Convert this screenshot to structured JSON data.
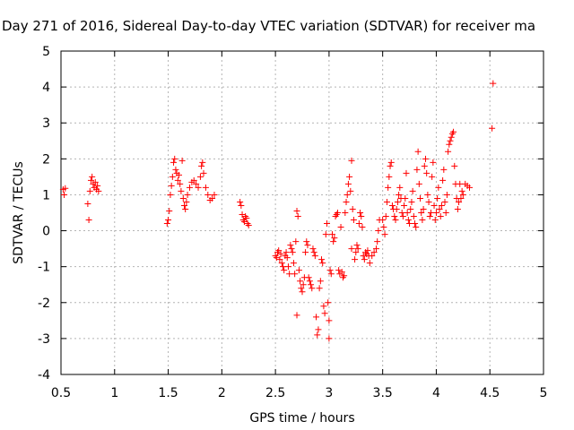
{
  "chart_data": {
    "type": "scatter",
    "title": "Day 271 of 2016, Sidereal Day-to-day VTEC variation (SDTVAR) for receiver ma",
    "xlabel": "GPS time / hours",
    "ylabel": "SDTVAR / TECUs",
    "xlim": [
      0.5,
      5
    ],
    "ylim": [
      -4,
      5
    ],
    "x_ticks": [
      0.5,
      1,
      1.5,
      2,
      2.5,
      3,
      3.5,
      4,
      4.5,
      5
    ],
    "x_tick_labels": [
      "0.5",
      "1",
      "1.5",
      "2",
      "2.5",
      "3",
      "3.5",
      "4",
      "4.5",
      "5"
    ],
    "y_ticks": [
      -4,
      -3,
      -2,
      -1,
      0,
      1,
      2,
      3,
      4,
      5
    ],
    "y_tick_labels": [
      "-4",
      "-3",
      "-2",
      "-1",
      "0",
      "1",
      "2",
      "3",
      "4",
      "5"
    ],
    "grid": true,
    "marker": "+",
    "series": [
      {
        "name": "SDTVAR",
        "color": "#ff0000",
        "points": [
          [
            0.52,
            1.15
          ],
          [
            0.53,
            1.0
          ],
          [
            0.54,
            1.18
          ],
          [
            0.75,
            0.75
          ],
          [
            0.76,
            0.3
          ],
          [
            0.77,
            1.1
          ],
          [
            0.78,
            1.4
          ],
          [
            0.79,
            1.5
          ],
          [
            0.8,
            1.3
          ],
          [
            0.81,
            1.2
          ],
          [
            0.82,
            1.35
          ],
          [
            0.83,
            1.15
          ],
          [
            0.84,
            1.25
          ],
          [
            0.85,
            1.1
          ],
          [
            1.49,
            0.2
          ],
          [
            1.5,
            0.3
          ],
          [
            1.51,
            0.55
          ],
          [
            1.52,
            1.0
          ],
          [
            1.53,
            1.25
          ],
          [
            1.54,
            1.5
          ],
          [
            1.55,
            1.9
          ],
          [
            1.56,
            2.0
          ],
          [
            1.57,
            1.7
          ],
          [
            1.58,
            1.6
          ],
          [
            1.59,
            1.4
          ],
          [
            1.6,
            1.55
          ],
          [
            1.61,
            1.3
          ],
          [
            1.62,
            1.1
          ],
          [
            1.63,
            1.95
          ],
          [
            1.64,
            0.9
          ],
          [
            1.65,
            0.7
          ],
          [
            1.66,
            0.6
          ],
          [
            1.67,
            0.8
          ],
          [
            1.68,
            1.0
          ],
          [
            1.7,
            1.2
          ],
          [
            1.72,
            1.35
          ],
          [
            1.74,
            1.4
          ],
          [
            1.76,
            1.3
          ],
          [
            1.78,
            1.2
          ],
          [
            1.8,
            1.5
          ],
          [
            1.81,
            1.8
          ],
          [
            1.82,
            1.9
          ],
          [
            1.83,
            1.6
          ],
          [
            1.85,
            1.2
          ],
          [
            1.87,
            1.0
          ],
          [
            1.89,
            0.85
          ],
          [
            1.91,
            0.9
          ],
          [
            1.93,
            1.0
          ],
          [
            2.17,
            0.8
          ],
          [
            2.18,
            0.7
          ],
          [
            2.19,
            0.45
          ],
          [
            2.2,
            0.3
          ],
          [
            2.21,
            0.25
          ],
          [
            2.22,
            0.4
          ],
          [
            2.23,
            0.35
          ],
          [
            2.24,
            0.2
          ],
          [
            2.25,
            0.15
          ],
          [
            2.5,
            -0.7
          ],
          [
            2.51,
            -0.75
          ],
          [
            2.52,
            -0.6
          ],
          [
            2.53,
            -0.55
          ],
          [
            2.54,
            -0.8
          ],
          [
            2.55,
            -0.65
          ],
          [
            2.56,
            -0.9
          ],
          [
            2.57,
            -1.0
          ],
          [
            2.58,
            -1.1
          ],
          [
            2.59,
            -0.7
          ],
          [
            2.6,
            -0.6
          ],
          [
            2.61,
            -0.75
          ],
          [
            2.62,
            -1.0
          ],
          [
            2.63,
            -1.2
          ],
          [
            2.64,
            -0.4
          ],
          [
            2.65,
            -0.5
          ],
          [
            2.66,
            -0.6
          ],
          [
            2.67,
            -0.9
          ],
          [
            2.68,
            -1.2
          ],
          [
            2.69,
            -0.3
          ],
          [
            2.7,
            0.55
          ],
          [
            2.7,
            -2.35
          ],
          [
            2.71,
            0.4
          ],
          [
            2.72,
            -1.1
          ],
          [
            2.73,
            -1.4
          ],
          [
            2.74,
            -1.6
          ],
          [
            2.75,
            -1.7
          ],
          [
            2.76,
            -1.5
          ],
          [
            2.77,
            -1.3
          ],
          [
            2.78,
            -0.6
          ],
          [
            2.79,
            -0.3
          ],
          [
            2.8,
            -0.4
          ],
          [
            2.81,
            -1.3
          ],
          [
            2.82,
            -1.4
          ],
          [
            2.83,
            -1.5
          ],
          [
            2.84,
            -1.6
          ],
          [
            2.85,
            -0.5
          ],
          [
            2.86,
            -0.6
          ],
          [
            2.87,
            -0.7
          ],
          [
            2.88,
            -2.4
          ],
          [
            2.89,
            -2.9
          ],
          [
            2.9,
            -2.75
          ],
          [
            2.91,
            -1.6
          ],
          [
            2.92,
            -1.4
          ],
          [
            2.93,
            -0.8
          ],
          [
            2.94,
            -0.9
          ],
          [
            2.95,
            -2.1
          ],
          [
            2.96,
            -2.3
          ],
          [
            2.97,
            -0.1
          ],
          [
            2.98,
            0.2
          ],
          [
            2.99,
            -2.0
          ],
          [
            3.0,
            -2.5
          ],
          [
            3.0,
            -3.0
          ],
          [
            3.01,
            -1.1
          ],
          [
            3.02,
            -1.2
          ],
          [
            3.03,
            -0.1
          ],
          [
            3.04,
            -0.3
          ],
          [
            3.05,
            -0.2
          ],
          [
            3.06,
            0.4
          ],
          [
            3.07,
            0.45
          ],
          [
            3.08,
            0.5
          ],
          [
            3.09,
            -1.1
          ],
          [
            3.1,
            -1.2
          ],
          [
            3.11,
            0.1
          ],
          [
            3.12,
            -1.15
          ],
          [
            3.13,
            -1.3
          ],
          [
            3.14,
            -1.25
          ],
          [
            3.15,
            0.5
          ],
          [
            3.16,
            0.8
          ],
          [
            3.17,
            1.0
          ],
          [
            3.18,
            1.3
          ],
          [
            3.19,
            1.5
          ],
          [
            3.2,
            1.1
          ],
          [
            3.21,
            -0.5
          ],
          [
            3.21,
            1.95
          ],
          [
            3.22,
            0.6
          ],
          [
            3.23,
            0.3
          ],
          [
            3.24,
            -0.8
          ],
          [
            3.25,
            -0.6
          ],
          [
            3.26,
            -0.4
          ],
          [
            3.27,
            -0.5
          ],
          [
            3.28,
            0.2
          ],
          [
            3.29,
            0.5
          ],
          [
            3.3,
            0.4
          ],
          [
            3.31,
            0.1
          ],
          [
            3.32,
            -0.7
          ],
          [
            3.33,
            -0.8
          ],
          [
            3.34,
            -0.6
          ],
          [
            3.35,
            -0.65
          ],
          [
            3.36,
            -0.55
          ],
          [
            3.37,
            -0.7
          ],
          [
            3.38,
            -0.9
          ],
          [
            3.4,
            -0.7
          ],
          [
            3.42,
            -0.6
          ],
          [
            3.44,
            -0.5
          ],
          [
            3.45,
            -0.3
          ],
          [
            3.46,
            0.0
          ],
          [
            3.47,
            0.3
          ],
          [
            3.5,
            0.3
          ],
          [
            3.51,
            0.1
          ],
          [
            3.52,
            -0.1
          ],
          [
            3.53,
            0.4
          ],
          [
            3.54,
            0.8
          ],
          [
            3.55,
            1.2
          ],
          [
            3.56,
            1.5
          ],
          [
            3.57,
            1.8
          ],
          [
            3.58,
            1.9
          ],
          [
            3.59,
            0.7
          ],
          [
            3.6,
            0.6
          ],
          [
            3.61,
            0.4
          ],
          [
            3.62,
            0.3
          ],
          [
            3.63,
            0.6
          ],
          [
            3.64,
            0.8
          ],
          [
            3.65,
            1.0
          ],
          [
            3.66,
            1.2
          ],
          [
            3.67,
            0.9
          ],
          [
            3.68,
            0.5
          ],
          [
            3.69,
            0.4
          ],
          [
            3.7,
            0.7
          ],
          [
            3.71,
            0.9
          ],
          [
            3.72,
            1.6
          ],
          [
            3.73,
            0.5
          ],
          [
            3.74,
            0.3
          ],
          [
            3.75,
            0.2
          ],
          [
            3.76,
            0.6
          ],
          [
            3.77,
            0.8
          ],
          [
            3.78,
            1.1
          ],
          [
            3.79,
            0.4
          ],
          [
            3.8,
            0.2
          ],
          [
            3.81,
            0.1
          ],
          [
            3.82,
            1.7
          ],
          [
            3.83,
            2.2
          ],
          [
            3.84,
            1.3
          ],
          [
            3.85,
            0.9
          ],
          [
            3.86,
            0.5
          ],
          [
            3.87,
            0.3
          ],
          [
            3.88,
            0.6
          ],
          [
            3.89,
            1.8
          ],
          [
            3.9,
            2.0
          ],
          [
            3.91,
            1.6
          ],
          [
            3.92,
            1.0
          ],
          [
            3.93,
            0.8
          ],
          [
            3.94,
            0.4
          ],
          [
            3.95,
            0.5
          ],
          [
            3.96,
            1.5
          ],
          [
            3.97,
            1.9
          ],
          [
            3.98,
            0.7
          ],
          [
            3.99,
            0.3
          ],
          [
            4.0,
            0.5
          ],
          [
            4.01,
            0.9
          ],
          [
            4.02,
            1.2
          ],
          [
            4.03,
            0.6
          ],
          [
            4.04,
            0.4
          ],
          [
            4.05,
            0.7
          ],
          [
            4.06,
            1.4
          ],
          [
            4.07,
            1.7
          ],
          [
            4.08,
            0.8
          ],
          [
            4.09,
            0.5
          ],
          [
            4.1,
            1.0
          ],
          [
            4.11,
            2.2
          ],
          [
            4.12,
            2.4
          ],
          [
            4.13,
            2.5
          ],
          [
            4.14,
            2.6
          ],
          [
            4.15,
            2.7
          ],
          [
            4.16,
            2.75
          ],
          [
            4.17,
            1.8
          ],
          [
            4.18,
            1.3
          ],
          [
            4.19,
            0.9
          ],
          [
            4.2,
            0.6
          ],
          [
            4.21,
            0.8
          ],
          [
            4.22,
            1.3
          ],
          [
            4.23,
            0.9
          ],
          [
            4.24,
            1.1
          ],
          [
            4.25,
            1.0
          ],
          [
            4.27,
            1.3
          ],
          [
            4.29,
            1.25
          ],
          [
            4.31,
            1.2
          ],
          [
            4.52,
            2.85
          ],
          [
            4.53,
            4.1
          ]
        ]
      }
    ]
  }
}
